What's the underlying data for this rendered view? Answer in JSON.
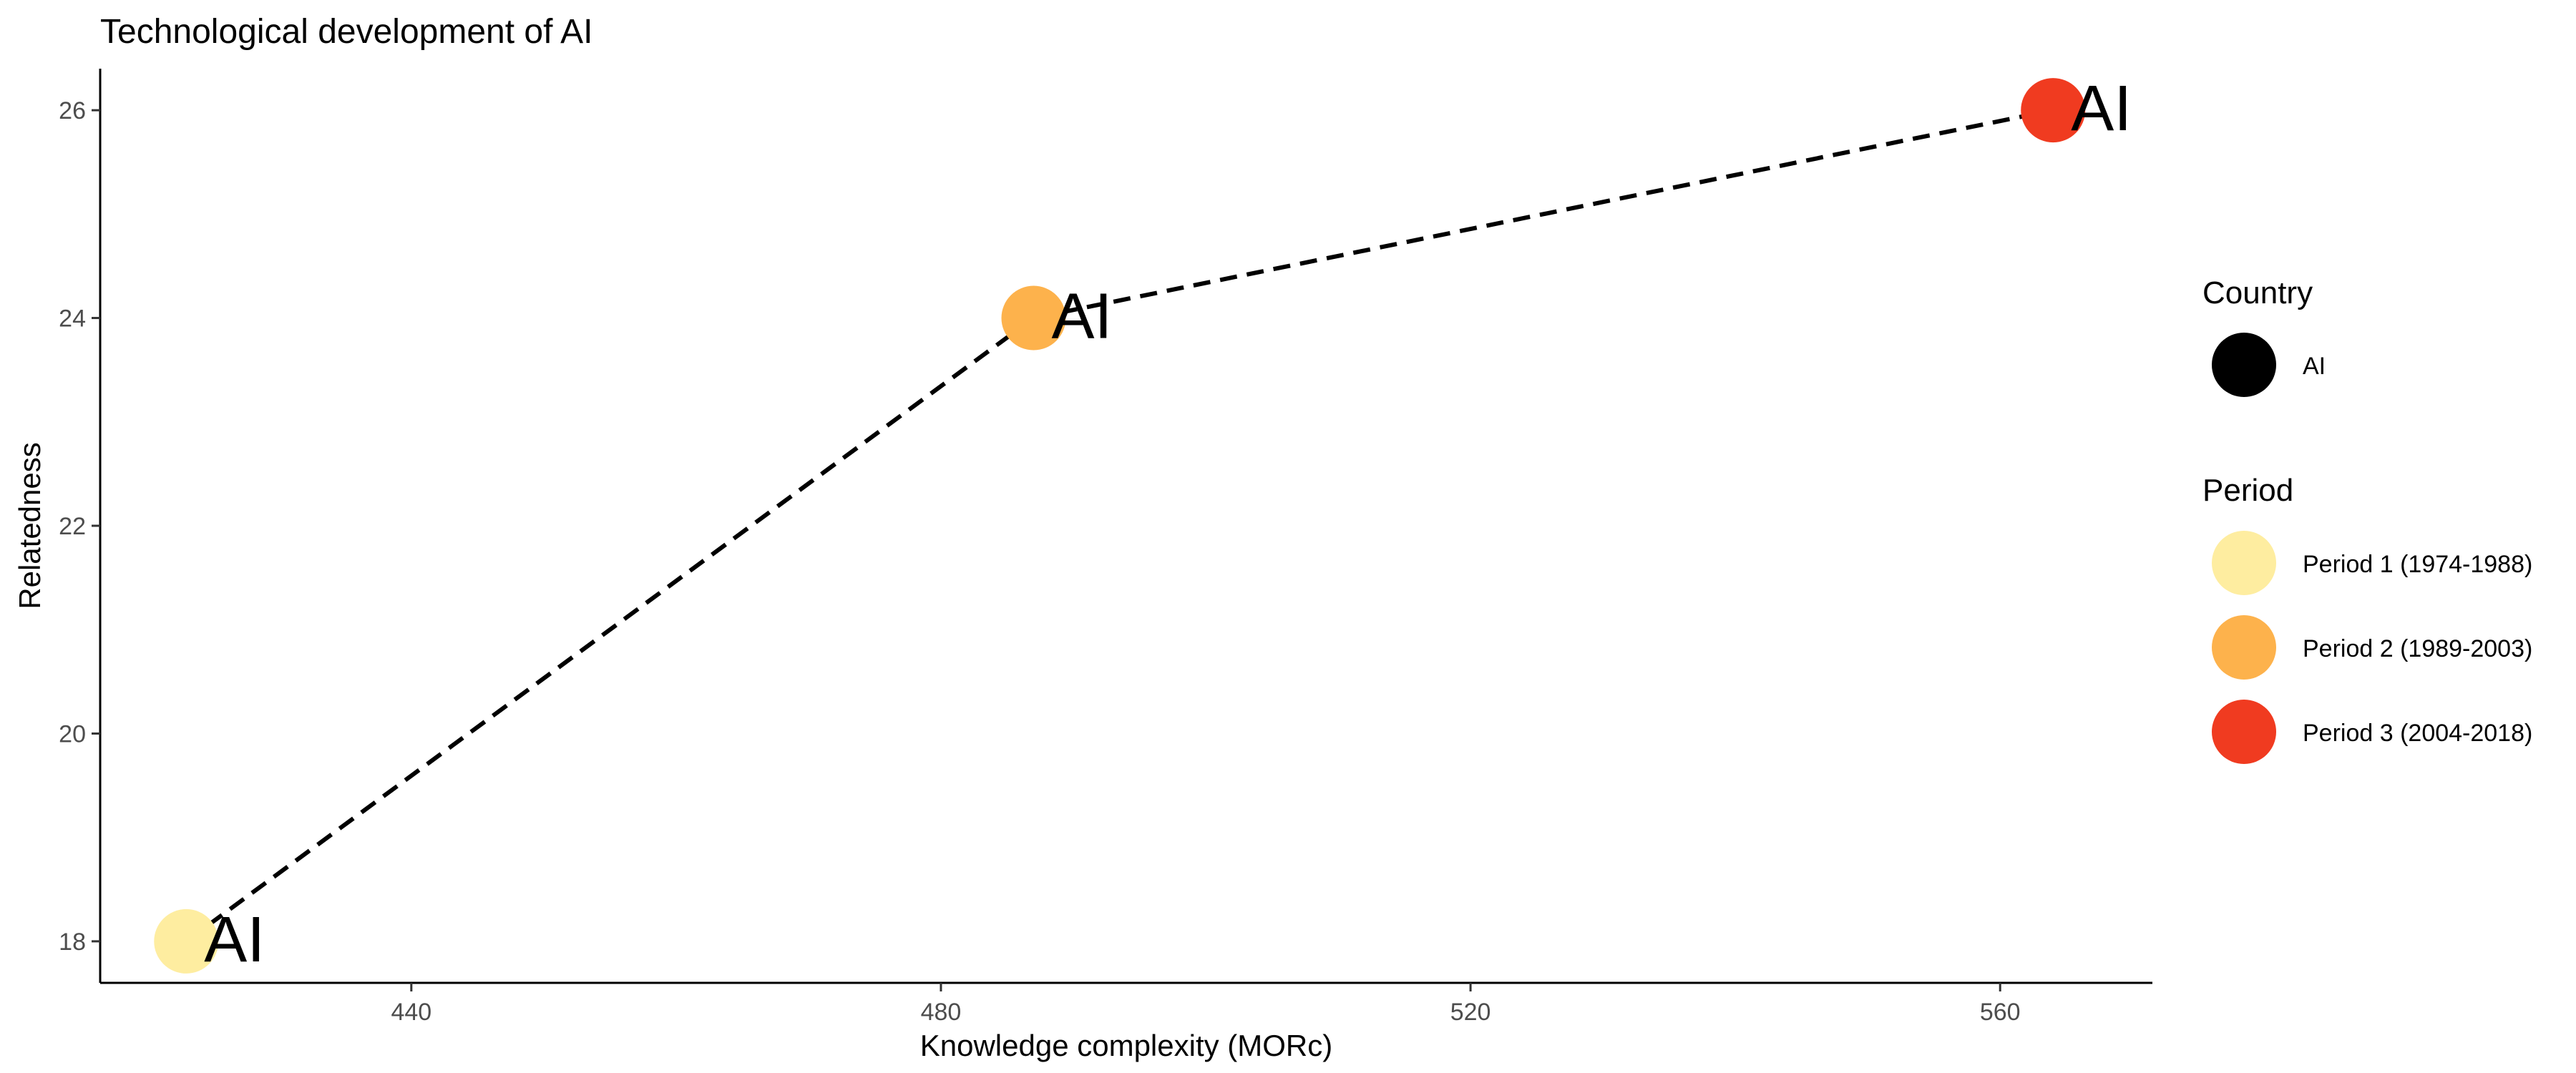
{
  "chart_data": {
    "type": "scatter",
    "title": "Technological development of AI",
    "xlabel": "Knowledge complexity (MORc)",
    "ylabel": "Relatedness",
    "xlim": [
      416.5,
      571.5
    ],
    "ylim": [
      17.6,
      26.4
    ],
    "xticks": [
      440,
      480,
      520,
      560
    ],
    "yticks": [
      18,
      20,
      22,
      24,
      26
    ],
    "grid": false,
    "points": [
      {
        "x": 423,
        "y": 18,
        "label": "AI",
        "period": "Period 1 (1974-1988)",
        "color": "#FEEDA0"
      },
      {
        "x": 487,
        "y": 24,
        "label": "AI",
        "period": "Period 2 (1989-2003)",
        "color": "#FDB24C"
      },
      {
        "x": 564,
        "y": 26,
        "label": "AI",
        "period": "Period 3 (2004-2018)",
        "color": "#F03B20"
      }
    ],
    "path": {
      "style": "dashed",
      "arrow": "end",
      "color": "#000000"
    },
    "legend": {
      "placement": "right",
      "groups": [
        {
          "title": "Country",
          "items": [
            {
              "label": "AI",
              "color": "#000000"
            }
          ]
        },
        {
          "title": "Period",
          "items": [
            {
              "label": "Period 1 (1974-1988)",
              "color": "#FEEDA0"
            },
            {
              "label": "Period 2 (1989-2003)",
              "color": "#FDB24C"
            },
            {
              "label": "Period 3 (2004-2018)",
              "color": "#F03B20"
            }
          ]
        }
      ]
    }
  }
}
